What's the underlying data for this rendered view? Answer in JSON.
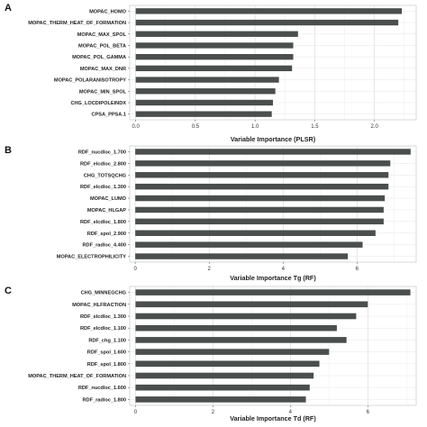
{
  "chart_data": [
    {
      "type": "bar",
      "orientation": "horizontal",
      "panel": "A",
      "categories": [
        "MOPAC_HOMO",
        "MOPAC_THERM_HEAT_OF_FORMATION",
        "MOPAC_MAX_SPOL",
        "MOPAC_POL_BETA",
        "MOPAC_POL_GAMMA",
        "MOPAC_MAX_DNR",
        "MOPAC_POLARANISOTROPY",
        "MOPAC_MIN_SPOL",
        "CHG_LOCDIPOLEINDX",
        "CPSA_PPSA.1"
      ],
      "values": [
        2.23,
        2.2,
        1.36,
        1.32,
        1.32,
        1.31,
        1.2,
        1.17,
        1.15,
        1.14
      ],
      "xlabel": "Variable Importance (PLSR)",
      "xticks": [
        "0.0",
        "0.5",
        "1.0",
        "1.5",
        "2.0"
      ],
      "xlim": [
        -0.05,
        2.35
      ],
      "grid": true,
      "bar_color": "#4a4f4d"
    },
    {
      "type": "bar",
      "orientation": "horizontal",
      "panel": "B",
      "categories": [
        "RDF_nucdloc_1.700",
        "RDF_elcdloc_2.800",
        "CHG_TOTSQCHG",
        "RDF_elcdloc_1.300",
        "MOPAC_LUMO",
        "MOPAC_HLGAP",
        "RDF_elcdloc_1.800",
        "RDF_spol_2.900",
        "RDF_radloc_4.400",
        "MOPAC_ELECTROPHILICITY"
      ],
      "values": [
        7.45,
        6.9,
        6.85,
        6.85,
        6.75,
        6.72,
        6.72,
        6.5,
        6.15,
        5.75
      ],
      "xlabel": "Variable Importance Tg (RF)",
      "xticks": [
        "0",
        "2",
        "4",
        "6"
      ],
      "xlim": [
        -0.15,
        7.6
      ],
      "grid": true,
      "bar_color": "#4a4f4d"
    },
    {
      "type": "bar",
      "orientation": "horizontal",
      "panel": "C",
      "categories": [
        "CHG_MINNEGCHG",
        "MOPAC_HLFRACTION",
        "RDF_elcdloc_1.300",
        "RDF_elcdloc_1.100",
        "RDF_chg_1.100",
        "RDF_spol_1.600",
        "RDF_spol_1.800",
        "MOPAC_THERM_HEAT_OF_FORMATION",
        "RDF_nucdloc_1.600",
        "RDF_radloc_1.800"
      ],
      "values": [
        7.1,
        6.0,
        5.7,
        5.2,
        5.45,
        5.0,
        4.75,
        4.6,
        4.5,
        4.4
      ],
      "xlabel": "Variable Importance Td (RF)",
      "xticks": [
        "0",
        "2",
        "4",
        "6"
      ],
      "xlim": [
        -0.15,
        7.25
      ],
      "grid": true,
      "bar_color": "#4a4f4d"
    }
  ]
}
